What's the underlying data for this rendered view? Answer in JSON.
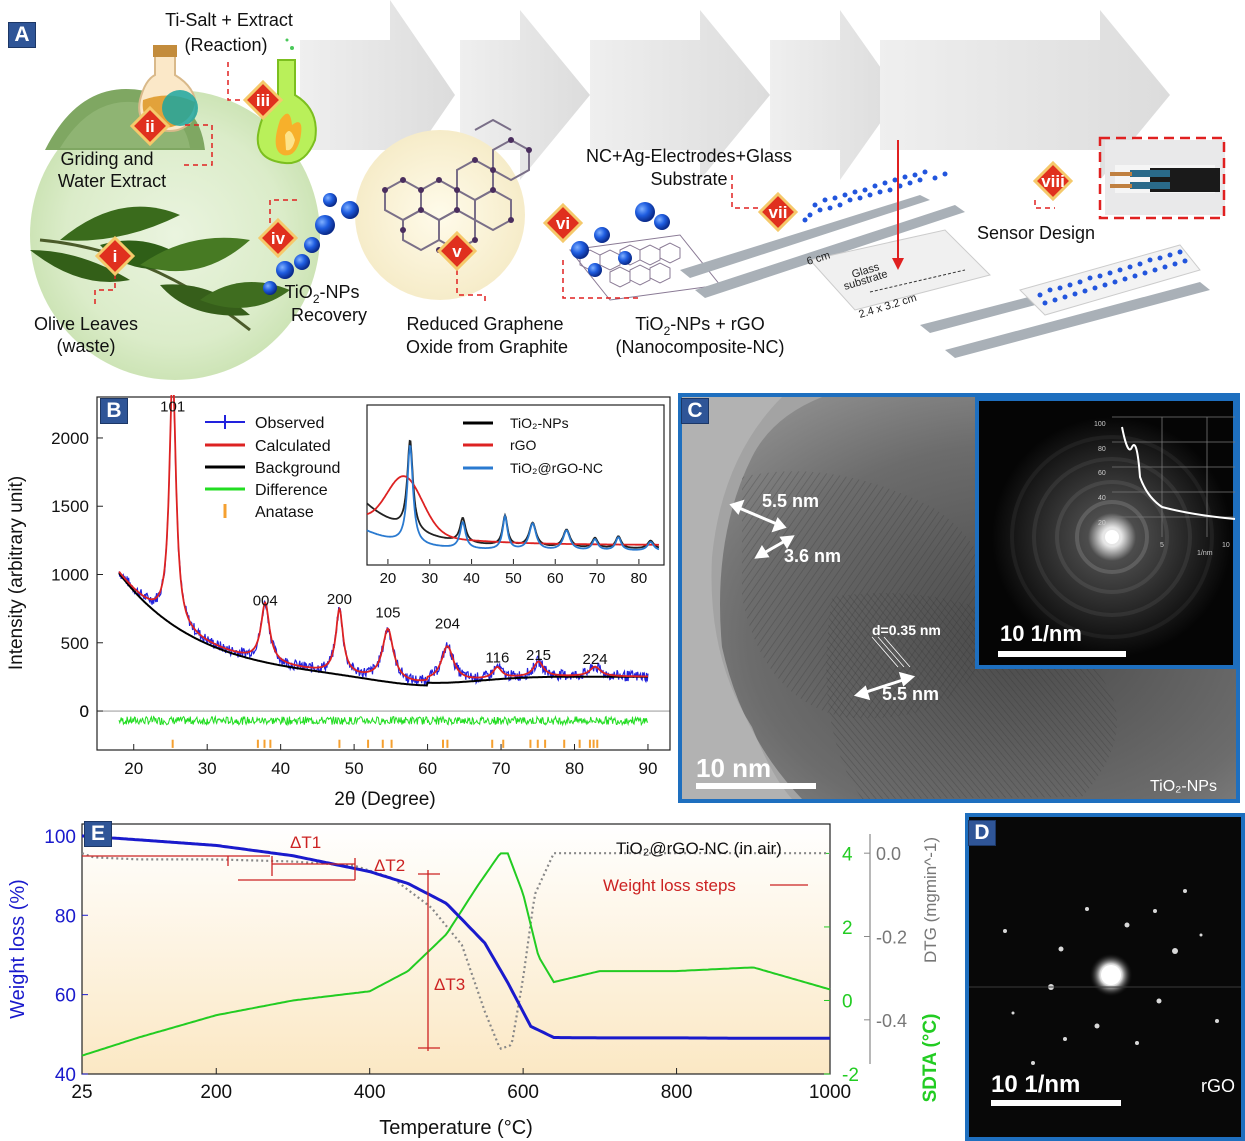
{
  "panelA": {
    "tag": "A",
    "steps": {
      "i": "i",
      "ii": "ii",
      "iii": "iii",
      "iv": "iv",
      "v": "v",
      "vi": "vi",
      "vii": "vii",
      "viii": "viii"
    },
    "labels": {
      "reaction_l1": "Ti-Salt + Extract",
      "reaction_l2": "(Reaction)",
      "griding_l1": "Griding and",
      "griding_l2": "Water Extract",
      "olive_l1": "Olive Leaves",
      "olive_l2": "(waste)",
      "tio2_rec_l1": "TiO",
      "tio2_rec_sub": "2",
      "tio2_rec_l1b": "-NPs",
      "tio2_rec_l2": "Recovery",
      "rgo_l1": "Reduced Graphene",
      "rgo_l2": "Oxide from Graphite",
      "nc_l1a": "TiO",
      "nc_l1sub": "2",
      "nc_l1b": "-NPs + rGO",
      "nc_l2": "(Nanocomposite-NC)",
      "electrodes_l1": "NC+Ag-Electrodes+Glass",
      "electrodes_l2": "Substrate",
      "sensor": "Sensor Design",
      "glass_l1": "Glass",
      "glass_l2": "substrate",
      "dim_6cm": "6 cm",
      "dim_glass": "2.4 x 3.2 cm"
    }
  },
  "panelB": {
    "tag": "B",
    "xlabel": "2θ (Degree)",
    "ylabel": "Intensity (arbitrary unit)",
    "legend": [
      "Observed",
      "Calculated",
      "Background",
      "Difference",
      "Anatase"
    ],
    "inset_legend": [
      "TiO₂-NPs",
      "rGO",
      "TiO₂@rGO-NC"
    ],
    "peaks": [
      {
        "label": "101",
        "x": 25.3,
        "y": 2150
      },
      {
        "label": "004",
        "x": 37.9,
        "y": 730
      },
      {
        "label": "200",
        "x": 48.0,
        "y": 740
      },
      {
        "label": "105",
        "x": 54.6,
        "y": 640
      },
      {
        "label": "204",
        "x": 62.7,
        "y": 560
      },
      {
        "label": "116",
        "x": 69.5,
        "y": 310
      },
      {
        "label": "215",
        "x": 75.1,
        "y": 330
      },
      {
        "label": "224",
        "x": 82.8,
        "y": 300
      }
    ]
  },
  "panelC": {
    "tag": "C",
    "ann_1": "5.5 nm",
    "ann_2": "3.6 nm",
    "ann_3": "d=0.35 nm",
    "ann_4": "5.5 nm",
    "scale": "10 nm",
    "inset_scale": "10 1/nm",
    "corner": "TiO₂-NPs",
    "inset_axis_unit": "1/nm"
  },
  "panelD": {
    "tag": "D",
    "scale": "10 1/nm",
    "corner": "rGO"
  },
  "panelE": {
    "tag": "E",
    "title": "TiO₂@rGO-NC (in air)",
    "xlabel": "Temperature (°C)",
    "ylabel_left": "Weight loss (%)",
    "ylabel_dtg": "DTG (mgmin^-1)",
    "ylabel_sdta": "SDTA (°C)",
    "steps_label": "Weight loss steps",
    "dT1": "ΔT1",
    "dT2": "ΔT2",
    "dT3": "ΔT3"
  },
  "chart_data": [
    {
      "type": "line",
      "panel": "B",
      "title": "",
      "xlabel": "2θ (Degree)",
      "ylabel": "Intensity (arbitrary unit)",
      "xlim": [
        15,
        93
      ],
      "ylim": [
        -300,
        2300
      ],
      "x_ticks": [
        20,
        30,
        40,
        50,
        60,
        70,
        80,
        90
      ],
      "y_ticks": [
        0,
        500,
        1000,
        1500,
        2000
      ],
      "legend_position": "top-center",
      "anatase_reflections": [
        25.3,
        36.9,
        37.8,
        38.6,
        48.0,
        51.9,
        53.9,
        55.1,
        62.1,
        62.7,
        68.8,
        70.3,
        74.0,
        75.0,
        76.0,
        78.6,
        80.7,
        82.1,
        82.6,
        83.1
      ],
      "series": [
        {
          "name": "Observed",
          "color": "#2222dd"
        },
        {
          "name": "Calculated",
          "color": "#dd2222"
        },
        {
          "name": "Background",
          "color": "#000000"
        },
        {
          "name": "Difference",
          "color": "#22dd22"
        },
        {
          "name": "Anatase",
          "color": "#f5a030"
        }
      ]
    },
    {
      "type": "line",
      "panel": "B-inset",
      "xlim": [
        15,
        86
      ],
      "x_ticks": [
        20,
        30,
        40,
        50,
        60,
        70,
        80
      ],
      "legend_position": "top-right",
      "series": [
        {
          "name": "TiO₂-NPs",
          "color": "#000000"
        },
        {
          "name": "rGO",
          "color": "#dd2222"
        },
        {
          "name": "TiO₂@rGO-NC",
          "color": "#2a7ad0"
        }
      ]
    },
    {
      "type": "line",
      "panel": "E",
      "title": "TiO₂@rGO-NC (in air)",
      "xlabel": "Temperature (°C)",
      "xlim": [
        25,
        1000
      ],
      "x_ticks": [
        25,
        200,
        400,
        600,
        800,
        1000
      ],
      "left_axis": {
        "label": "Weight loss (%)",
        "ticks": [
          40,
          60,
          80,
          100
        ],
        "lim": [
          40,
          103
        ]
      },
      "sdta_axis": {
        "label": "SDTA (°C)",
        "ticks": [
          -2,
          0,
          2,
          4
        ],
        "lim": [
          -2,
          4.8
        ]
      },
      "dtg_axis": {
        "label": "DTG (mgmin^-1)",
        "ticks": [
          0.0,
          -0.2,
          -0.4
        ],
        "lim": [
          -0.53,
          0.07
        ]
      },
      "series": [
        {
          "name": "Weight loss",
          "color": "#1a1acc",
          "x": [
            25,
            100,
            200,
            300,
            400,
            450,
            500,
            550,
            580,
            610,
            640,
            700,
            800,
            900,
            1000
          ],
          "y": [
            100,
            99,
            97.6,
            95,
            91,
            88,
            83,
            73,
            63,
            52,
            49.2,
            49.1,
            49.1,
            49,
            49
          ]
        },
        {
          "name": "SDTA",
          "color": "#22cc22",
          "x": [
            25,
            100,
            200,
            300,
            400,
            450,
            500,
            540,
            570,
            580,
            600,
            620,
            640,
            700,
            800,
            900,
            1000
          ],
          "y": [
            -1.5,
            -1.0,
            -0.4,
            0,
            0.25,
            0.8,
            1.8,
            3.1,
            4.0,
            4.0,
            2.9,
            1.2,
            0.5,
            0.8,
            0.8,
            0.9,
            0.3
          ]
        },
        {
          "name": "DTG",
          "color": "#888888",
          "x": [
            25,
            40,
            100,
            200,
            300,
            380,
            430,
            480,
            520,
            550,
            570,
            585,
            600,
            615,
            640,
            700,
            800,
            1000
          ],
          "y": [
            0.0,
            -0.01,
            -0.015,
            -0.015,
            -0.02,
            -0.03,
            -0.06,
            -0.13,
            -0.22,
            -0.38,
            -0.47,
            -0.46,
            -0.3,
            -0.1,
            0.0,
            0.0,
            0.0,
            0.0
          ]
        }
      ]
    }
  ]
}
